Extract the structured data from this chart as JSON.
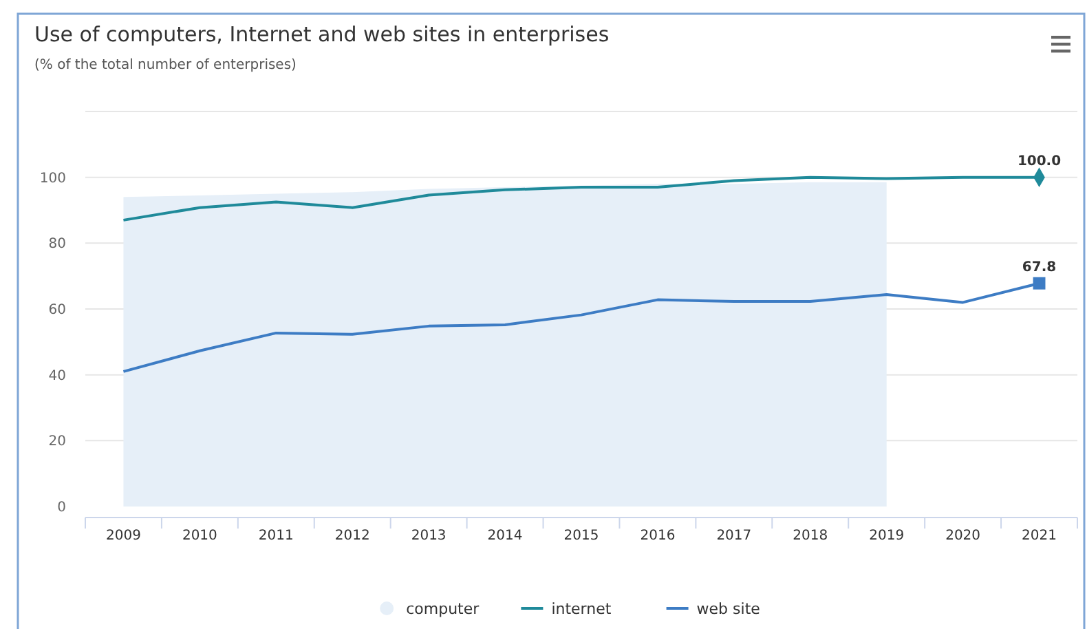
{
  "chart_data": {
    "type": "line",
    "title": "Use of computers, Internet and web sites in enterprises",
    "subtitle": "(% of the total number of enterprises)",
    "categories": [
      "2009",
      "2010",
      "2011",
      "2012",
      "2013",
      "2014",
      "2015",
      "2016",
      "2017",
      "2018",
      "2019",
      "2020",
      "2021"
    ],
    "series": [
      {
        "name": "computer",
        "type": "area",
        "color": "#e6eff8",
        "values": [
          94,
          94.5,
          95,
          95.5,
          96.5,
          97,
          97.5,
          98,
          98,
          98.5,
          98.5,
          null,
          null
        ]
      },
      {
        "name": "internet",
        "color": "#1f8a9a",
        "values": [
          87,
          90.8,
          92.5,
          90.8,
          94.6,
          96.2,
          97,
          97,
          99,
          100,
          99.6,
          100,
          100.0
        ],
        "value_labels": [
          null,
          null,
          null,
          null,
          null,
          null,
          null,
          null,
          null,
          null,
          null,
          null,
          "100.0"
        ]
      },
      {
        "name": "web site",
        "color": "#3d7cc4",
        "values": [
          41,
          47.3,
          52.7,
          52.3,
          54.8,
          55.2,
          58.2,
          62.8,
          62.3,
          62.3,
          64.4,
          62,
          67.8
        ],
        "value_labels": [
          null,
          null,
          null,
          null,
          null,
          null,
          null,
          null,
          null,
          null,
          null,
          null,
          "67.8"
        ]
      }
    ],
    "ylim": [
      0,
      120
    ],
    "yticks": [
      0,
      20,
      40,
      60,
      80,
      100,
      {
        "value": 120,
        "label": null
      }
    ],
    "grid": "y",
    "legend": "bottom"
  }
}
